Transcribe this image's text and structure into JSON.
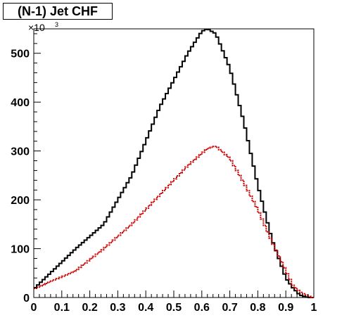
{
  "chart_data": {
    "type": "line",
    "title": "(N-1) Jet CHF",
    "xlabel": "",
    "ylabel": "",
    "xlim": [
      0,
      1
    ],
    "ylim": [
      0,
      550000
    ],
    "y_multiplier_base": "×10",
    "y_multiplier_exp": "3",
    "x_ticks": [
      0,
      0.1,
      0.2,
      0.3,
      0.4,
      0.5,
      0.6,
      0.7,
      0.8,
      0.9,
      1
    ],
    "x_tick_labels": [
      "0",
      "0.1",
      "0.2",
      "0.3",
      "0.4",
      "0.5",
      "0.6",
      "0.7",
      "0.8",
      "0.9",
      "1"
    ],
    "y_ticks": [
      0,
      100000,
      200000,
      300000,
      400000,
      500000
    ],
    "y_tick_labels": [
      "0",
      "100",
      "200",
      "300",
      "400",
      "500"
    ],
    "grid": false,
    "legend": "none",
    "series": [
      {
        "color": "#000000",
        "style": "histogram",
        "x": [
          0.05,
          0.15,
          0.25,
          0.35,
          0.45,
          0.55,
          0.6,
          0.62,
          0.65,
          0.7,
          0.75,
          0.8,
          0.85,
          0.9,
          0.925,
          0.95,
          0.975
        ],
        "y": [
          45000,
          100000,
          150000,
          250000,
          390000,
          500000,
          545000,
          550000,
          540000,
          470000,
          360000,
          230000,
          120000,
          40000,
          20000,
          5000,
          1000
        ]
      },
      {
        "color": "#cc0000",
        "style": "histogram",
        "x": [
          0.05,
          0.15,
          0.25,
          0.35,
          0.45,
          0.55,
          0.62,
          0.65,
          0.7,
          0.75,
          0.8,
          0.85,
          0.9,
          0.925,
          0.95,
          0.975
        ],
        "y": [
          30000,
          55000,
          100000,
          150000,
          210000,
          270000,
          305000,
          310000,
          285000,
          235000,
          180000,
          115000,
          55000,
          25000,
          12000,
          5000
        ]
      }
    ]
  }
}
